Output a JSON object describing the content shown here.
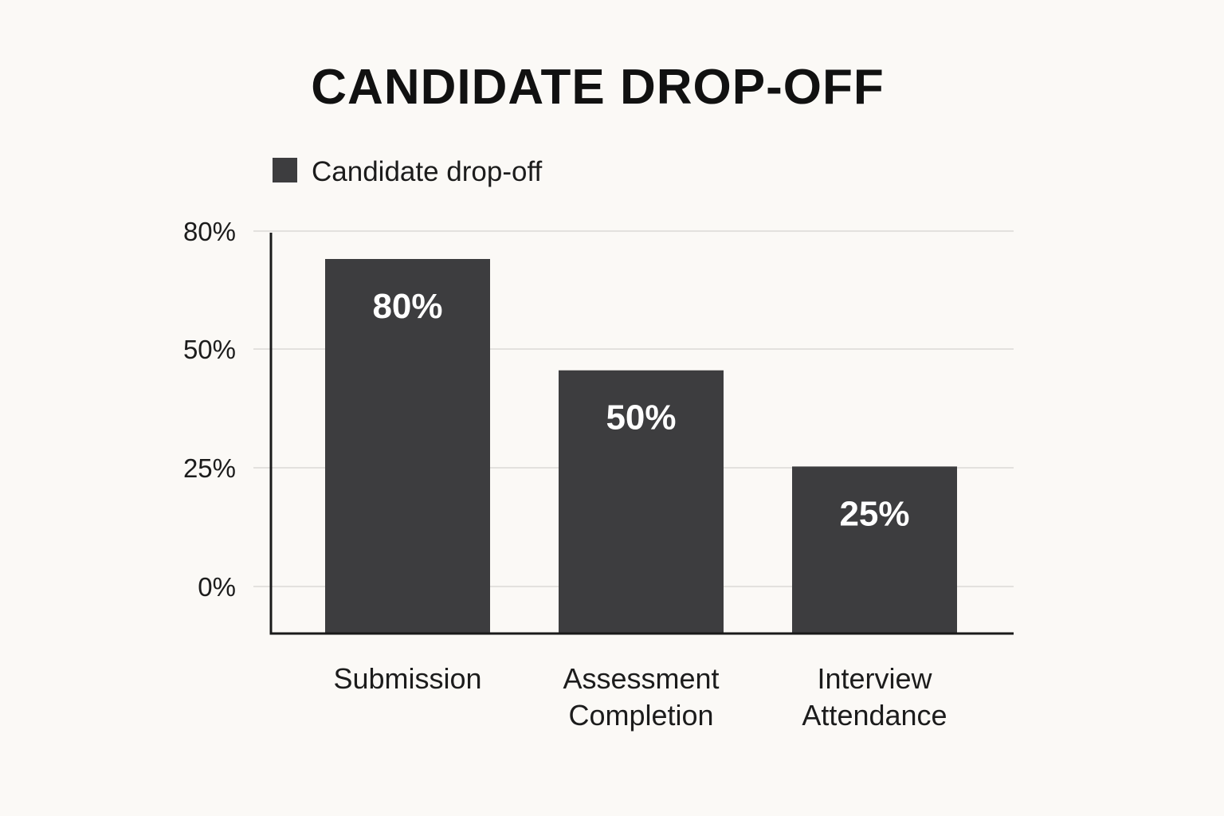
{
  "chart_data": {
    "type": "bar",
    "title": "CANDIDATE DROP-OFF",
    "legend": {
      "position": "top-left",
      "entries": [
        "Candidate drop-off"
      ]
    },
    "categories": [
      [
        "Submission"
      ],
      [
        "Assessment",
        "Completion"
      ],
      [
        "Interview",
        "Attendance"
      ]
    ],
    "series": [
      {
        "name": "Candidate drop-off",
        "values": [
          80,
          50,
          25
        ],
        "data_labels": [
          "80%",
          "50%",
          "25%"
        ]
      }
    ],
    "yticks": [
      {
        "value": 0,
        "label": "0%"
      },
      {
        "value": 25,
        "label": "25%"
      },
      {
        "value": 50,
        "label": "50%"
      },
      {
        "value": 80,
        "label": "80%"
      }
    ],
    "bar_heights_estimated": [
      74,
      52,
      33
    ],
    "grid": true,
    "colors": {
      "bar": "#3d3d3f",
      "background": "#fbf9f6",
      "data_label": "#ffffff"
    }
  }
}
